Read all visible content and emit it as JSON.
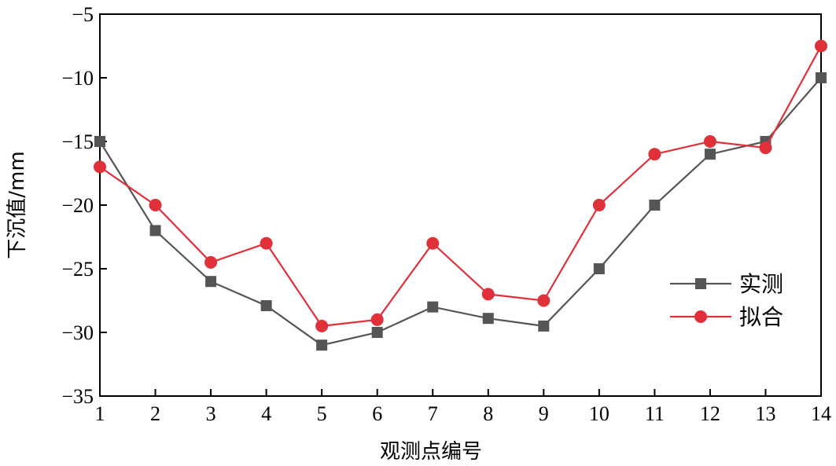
{
  "chart_data": {
    "type": "line",
    "xlabel": "观测点编号",
    "ylabel": "下沉值/mm",
    "x": [
      1,
      2,
      3,
      4,
      5,
      6,
      7,
      8,
      9,
      10,
      11,
      12,
      13,
      14
    ],
    "x_ticks": [
      "1",
      "2",
      "3",
      "4",
      "5",
      "6",
      "7",
      "8",
      "9",
      "10",
      "11",
      "12",
      "13",
      "14"
    ],
    "xlim": [
      1,
      14
    ],
    "ylim": [
      -35,
      -5
    ],
    "y_ticks": [
      -5,
      -10,
      -15,
      -20,
      -25,
      -30,
      -35
    ],
    "y_tick_labels": [
      "−5",
      "−10",
      "−15",
      "−20",
      "−25",
      "−30",
      "−35"
    ],
    "grid": false,
    "legend_position": "right",
    "series": [
      {
        "name": "实测",
        "color": "#555555",
        "marker": "square",
        "values": [
          -15,
          -22,
          -26,
          -27.9,
          -31,
          -30,
          -28,
          -28.9,
          -29.5,
          -25,
          -20,
          -16,
          -15,
          -10
        ]
      },
      {
        "name": "拟合",
        "color": "#e0303a",
        "marker": "circle",
        "values": [
          -17,
          -20,
          -24.5,
          -23,
          -29.5,
          -29,
          -23,
          -27,
          -27.5,
          -20,
          -16,
          -15,
          -15.5,
          -7.5
        ]
      }
    ]
  }
}
